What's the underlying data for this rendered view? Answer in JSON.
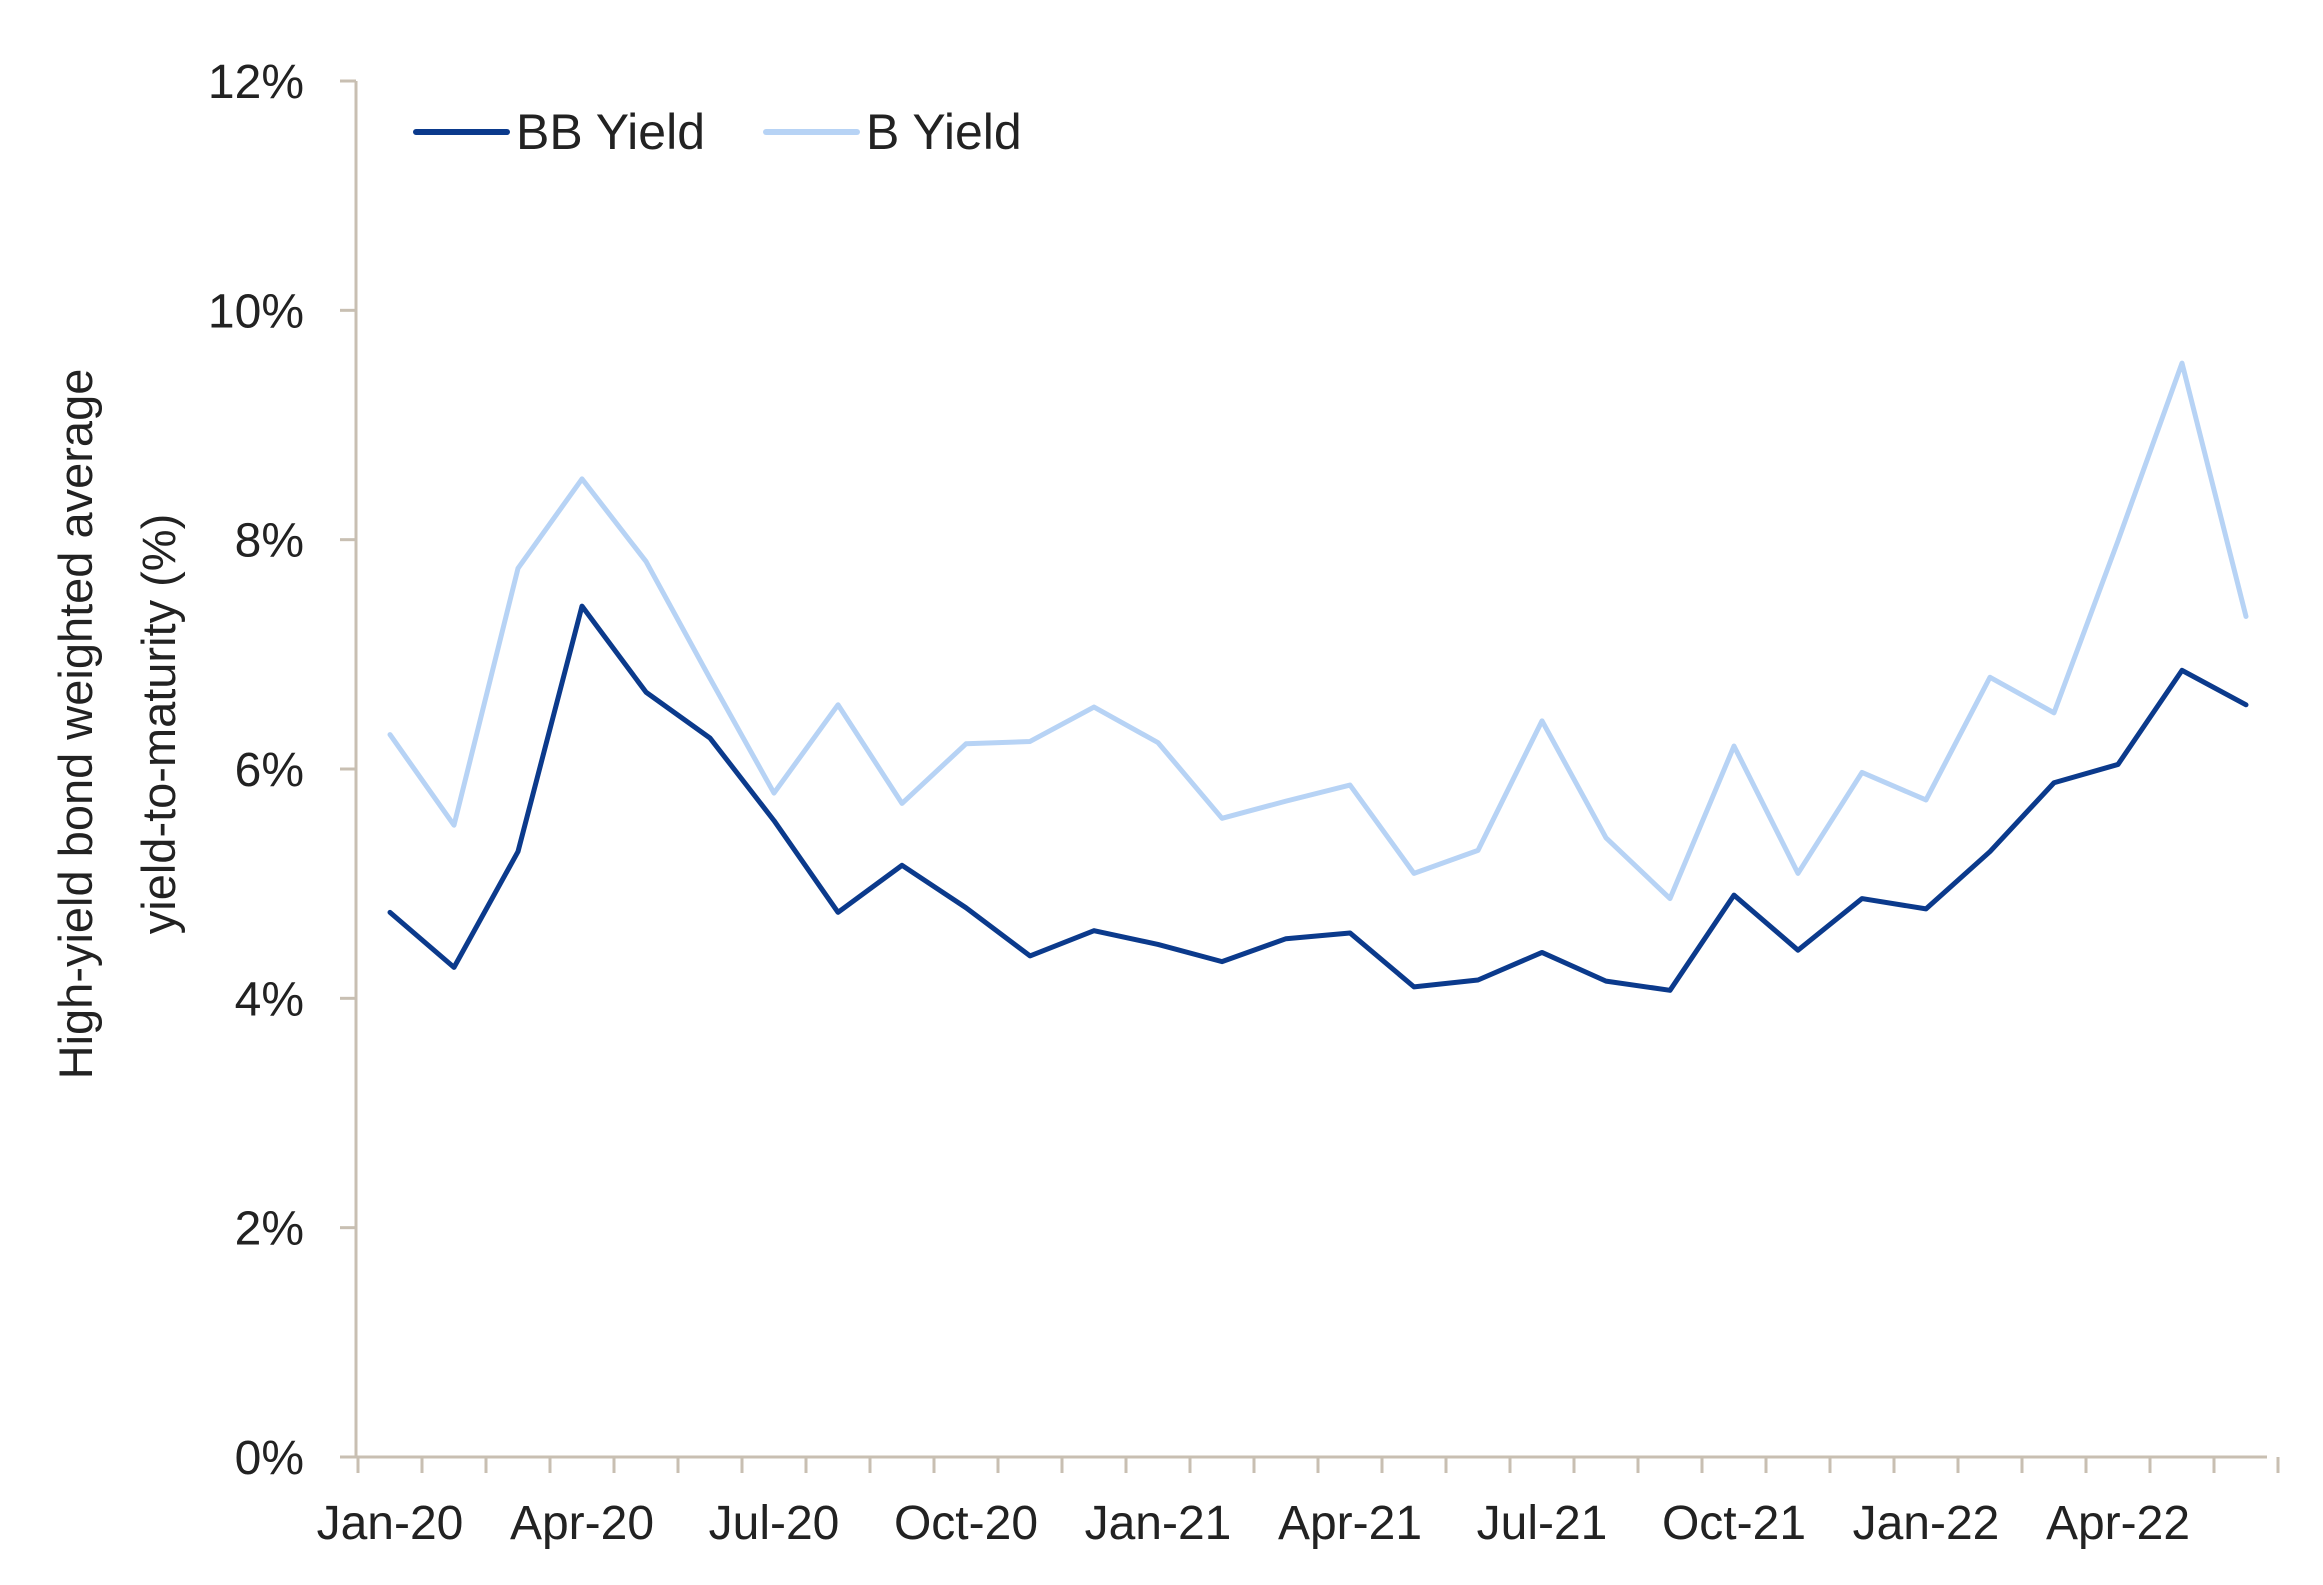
{
  "chart_data": {
    "type": "line",
    "ylabel_lines": [
      "High-yield bond weighted average",
      "yield-to-maturity (%)"
    ],
    "xlabel": "",
    "ylim": [
      0,
      12
    ],
    "y_ticks": [
      "0%",
      "2%",
      "4%",
      "6%",
      "8%",
      "10%",
      "12%"
    ],
    "x": [
      "Jan-20",
      "Feb-20",
      "Mar-20",
      "Apr-20",
      "May-20",
      "Jun-20",
      "Jul-20",
      "Aug-20",
      "Sep-20",
      "Oct-20",
      "Nov-20",
      "Dec-20",
      "Jan-21",
      "Feb-21",
      "Mar-21",
      "Apr-21",
      "May-21",
      "Jun-21",
      "Jul-21",
      "Aug-21",
      "Sep-21",
      "Oct-21",
      "Nov-21",
      "Dec-21",
      "Jan-22",
      "Feb-22",
      "Mar-22",
      "Apr-22",
      "May-22",
      "Jun-22"
    ],
    "x_tick_labels": [
      "Jan-20",
      "Apr-20",
      "Jul-20",
      "Oct-20",
      "Jan-21",
      "Apr-21",
      "Jul-21",
      "Oct-21",
      "Jan-22",
      "Apr-22"
    ],
    "legend_position": "top-left",
    "grid": false,
    "series": [
      {
        "name": "BB Yield",
        "color": "#0b3a8c",
        "values": [
          4.75,
          4.27,
          5.28,
          7.42,
          6.67,
          6.27,
          5.55,
          4.75,
          5.16,
          4.79,
          4.37,
          4.59,
          4.47,
          4.32,
          4.52,
          4.57,
          4.1,
          4.16,
          4.4,
          4.15,
          4.07,
          4.9,
          4.42,
          4.87,
          4.78,
          5.28,
          5.88,
          6.04,
          6.86,
          6.56
        ]
      },
      {
        "name": "B Yield",
        "color": "#b7d3f5",
        "values": [
          6.3,
          5.51,
          7.75,
          8.53,
          7.81,
          6.79,
          5.79,
          6.56,
          5.7,
          6.22,
          6.24,
          6.54,
          6.23,
          5.57,
          5.72,
          5.86,
          5.09,
          5.29,
          6.42,
          5.4,
          4.87,
          6.2,
          5.09,
          5.97,
          5.73,
          6.8,
          6.49,
          7.99,
          9.54,
          7.33
        ]
      }
    ]
  }
}
